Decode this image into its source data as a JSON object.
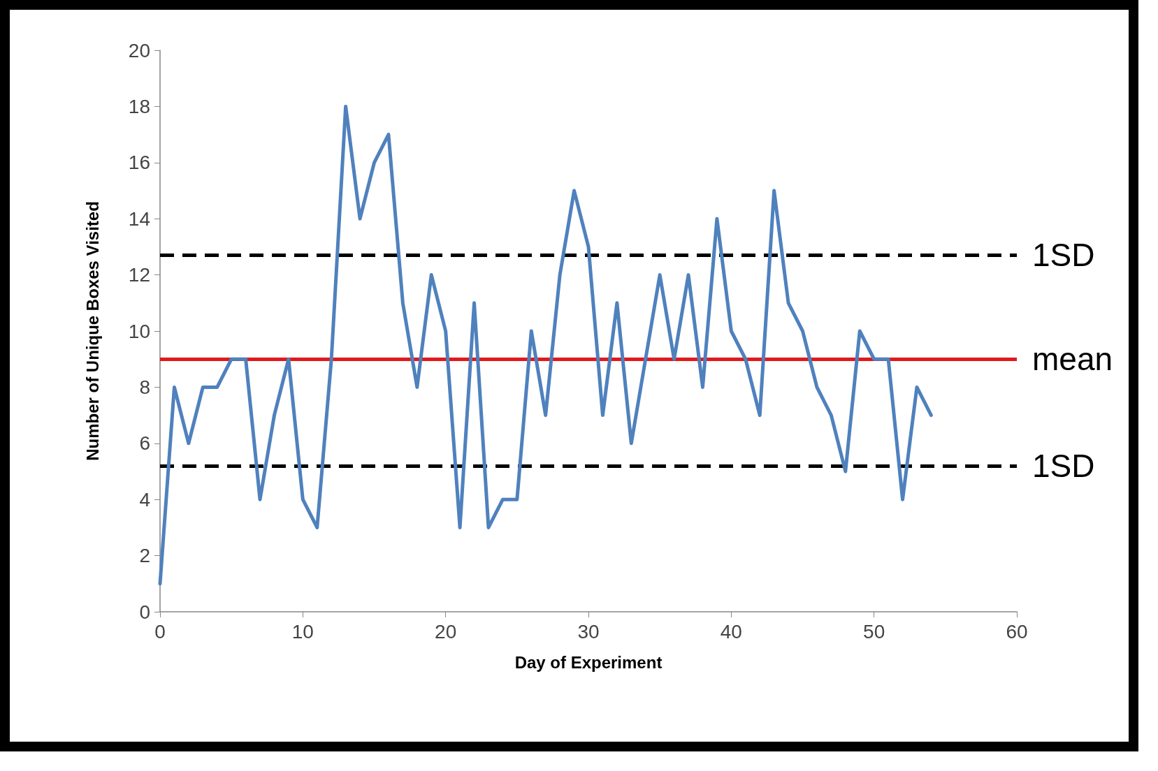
{
  "chart_data": {
    "type": "line",
    "xlabel": "Day of Experiment",
    "ylabel": "Number of Unique Boxes Visited",
    "x": [
      0,
      1,
      2,
      3,
      4,
      5,
      6,
      7,
      8,
      9,
      10,
      11,
      12,
      13,
      14,
      15,
      16,
      17,
      18,
      19,
      20,
      21,
      22,
      23,
      24,
      25,
      26,
      27,
      28,
      29,
      30,
      31,
      32,
      33,
      34,
      35,
      36,
      37,
      38,
      39,
      40,
      41,
      42,
      43,
      44,
      45,
      46,
      47,
      48,
      49,
      50,
      51,
      52,
      53,
      54
    ],
    "series": [
      {
        "color": "#4f81bd",
        "values": [
          1,
          8,
          6,
          8,
          8,
          9,
          9,
          4,
          7,
          9,
          4,
          3,
          9,
          18,
          14,
          16,
          17,
          11,
          8,
          12,
          10,
          3,
          11,
          3,
          4,
          4,
          10,
          7,
          12,
          15,
          13,
          7,
          11,
          6,
          9,
          12,
          9,
          12,
          8,
          14,
          10,
          9,
          7,
          15,
          11,
          10,
          8,
          7,
          5,
          10,
          9,
          9,
          4,
          8,
          7
        ]
      }
    ],
    "xlim": [
      0,
      60
    ],
    "xticks": [
      0,
      10,
      20,
      30,
      40,
      50,
      60
    ],
    "ylim": [
      0,
      20
    ],
    "yticks": [
      0,
      2,
      4,
      6,
      8,
      10,
      12,
      14,
      16,
      18,
      20
    ],
    "ref_lines": [
      {
        "axis": "y",
        "value": 12.7,
        "label": "1SD",
        "color": "#000000",
        "line_style": "dashed"
      },
      {
        "axis": "y",
        "value": 9,
        "label": "mean",
        "color": "#e0191c",
        "line_style": "solid"
      },
      {
        "axis": "y",
        "value": 5.2,
        "label": "1SD",
        "color": "#000000",
        "line_style": "dashed"
      }
    ],
    "grid": false,
    "marker": "none",
    "line_style": "solid"
  }
}
